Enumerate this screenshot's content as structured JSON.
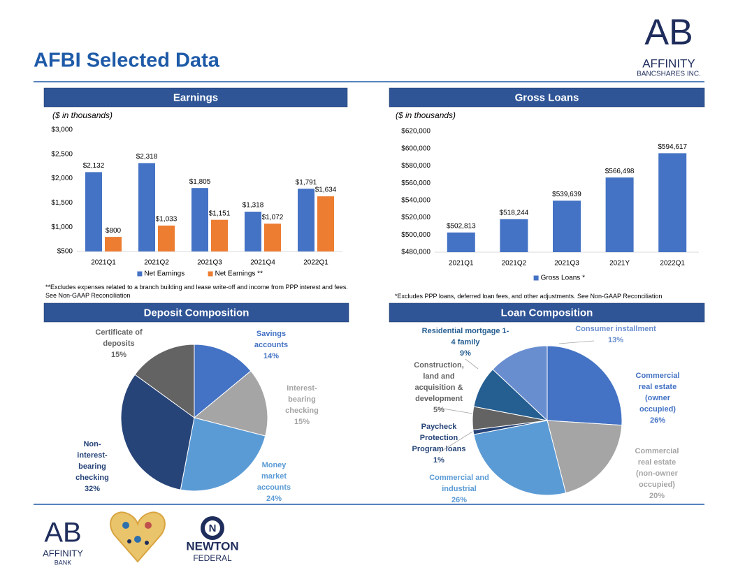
{
  "title": "AFBI Selected Data",
  "logos": {
    "corner": {
      "mark": "AB",
      "name": "AFFINITY",
      "sub": "BANCSHARES INC."
    },
    "bank": {
      "mark": "AB",
      "name": "AFFINITY",
      "sub": "BANK"
    },
    "newton": {
      "mark": "N",
      "name": "NEWTON",
      "sub": "FEDERAL"
    }
  },
  "chart_data": [
    {
      "type": "bar",
      "title": "Earnings",
      "subtitle": "($ in thousands)",
      "categories": [
        "2021Q1",
        "2021Q2",
        "2021Q3",
        "2021Q4",
        "2022Q1"
      ],
      "series": [
        {
          "name": "Net Earnings",
          "color": "#4472c4",
          "values": [
            2132,
            2318,
            1805,
            1318,
            1791
          ],
          "value_labels": [
            "$2,132",
            "$2,318",
            "$1,805",
            "$1,318",
            "$1,791"
          ]
        },
        {
          "name": "Net Earnings **",
          "color": "#ed7d31",
          "values": [
            800,
            1033,
            1151,
            1072,
            1634
          ],
          "value_labels": [
            "$800",
            "$1,033",
            "$1,151",
            "$1,072",
            "$1,634"
          ]
        }
      ],
      "ylim": [
        500,
        3000
      ],
      "yticks": [
        {
          "value": 500,
          "label": "$500"
        },
        {
          "value": 1000,
          "label": "$1,000"
        },
        {
          "value": 1500,
          "label": "$1,500"
        },
        {
          "value": 2000,
          "label": "$2,000"
        },
        {
          "value": 2500,
          "label": "$2,500"
        },
        {
          "value": 3000,
          "label": "$3,000"
        }
      ],
      "footnote": "**Excludes expenses related to a branch building and lease write-off and income from PPP interest and fees.  See Non-GAAP Reconciliation"
    },
    {
      "type": "bar",
      "title": "Gross Loans",
      "subtitle": "($ in thousands)",
      "categories": [
        "2021Q1",
        "2021Q2",
        "2021Q3",
        "2021Y",
        "2022Q1"
      ],
      "series": [
        {
          "name": "Gross Loans *",
          "color": "#4472c4",
          "values": [
            502813,
            518244,
            539639,
            566498,
            594617
          ],
          "value_labels": [
            "$502,813",
            "$518,244",
            "$539,639",
            "$566,498",
            "$594,617"
          ]
        }
      ],
      "ylim": [
        480000,
        620000
      ],
      "yticks": [
        {
          "value": 480000,
          "label": "$480,000"
        },
        {
          "value": 500000,
          "label": "$500,000"
        },
        {
          "value": 520000,
          "label": "$520,000"
        },
        {
          "value": 540000,
          "label": "$540,000"
        },
        {
          "value": 560000,
          "label": "$560,000"
        },
        {
          "value": 580000,
          "label": "$580,000"
        },
        {
          "value": 600000,
          "label": "$600,000"
        },
        {
          "value": 620000,
          "label": "$620,000"
        }
      ],
      "footnote": "*Excludes PPP loans, deferred loan fees, and other adjustments.  See Non-GAAP Reconciliation"
    },
    {
      "type": "pie",
      "title": "Deposit Composition",
      "categories": [
        "Savings accounts",
        "Interest-bearing checking",
        "Money market accounts",
        "Non-interest-bearing checking",
        "Certificate of deposits"
      ],
      "values": [
        14,
        15,
        24,
        32,
        15
      ],
      "value_labels": [
        "14%",
        "15%",
        "24%",
        "32%",
        "15%"
      ],
      "colors": [
        "#4472c4",
        "#a5a5a5",
        "#5b9bd5",
        "#264478",
        "#636363"
      ]
    },
    {
      "type": "pie",
      "title": "Loan Composition",
      "categories": [
        "Commercial real estate (owner occupied)",
        "Commercial real estate (non-owner occupied)",
        "Commercial and industrial",
        "Paycheck Protection Program loans",
        "Construction, land and acquisition & development",
        "Residential mortgage 1-4 family",
        "Consumer installment"
      ],
      "values": [
        26,
        20,
        26,
        1,
        5,
        9,
        13
      ],
      "value_labels": [
        "26%",
        "20%",
        "26%",
        "1%",
        "5%",
        "9%",
        "13%"
      ],
      "colors": [
        "#4472c4",
        "#a5a5a5",
        "#5b9bd5",
        "#264478",
        "#636363",
        "#255e91",
        "#698ed0"
      ]
    }
  ]
}
